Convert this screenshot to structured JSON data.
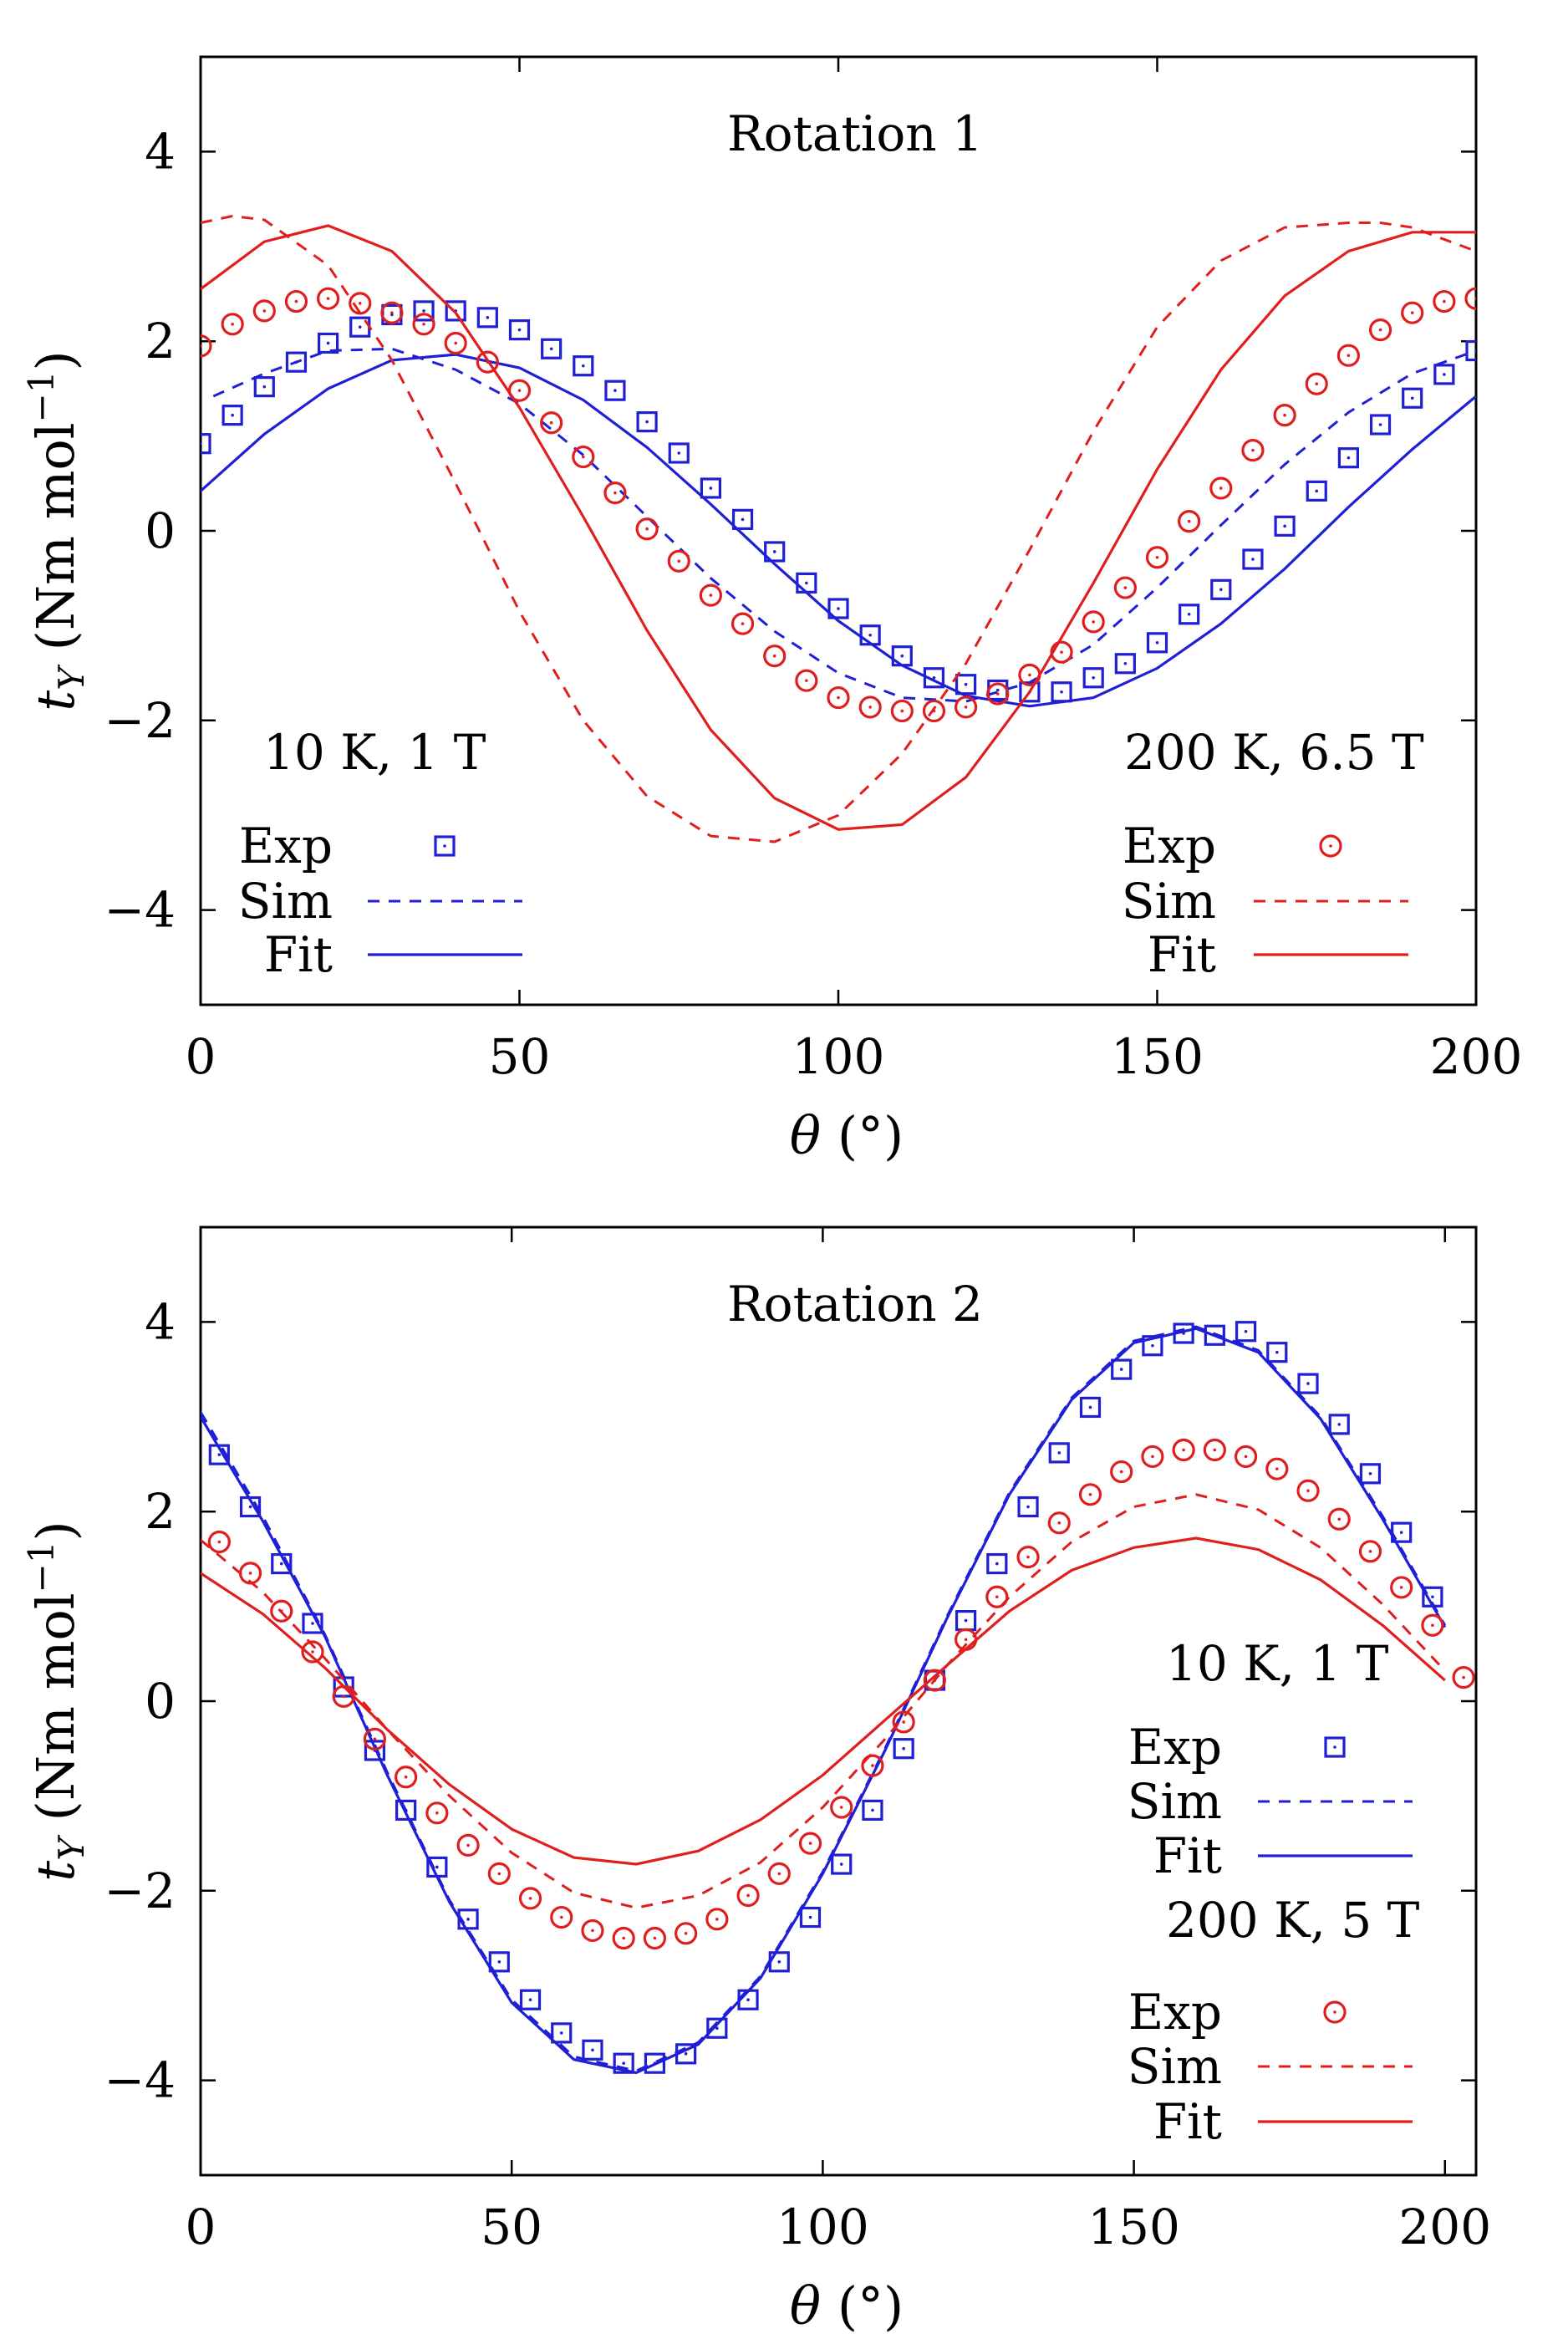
{
  "chart_data": [
    {
      "type": "line",
      "title": "Rotation 1",
      "xlabel_symbol": "θ",
      "xlabel_unit": " (°)",
      "ylabel_symbol": "t",
      "ylabel_sub": "Y",
      "ylabel_unit": " (Nm mol",
      "ylabel_exp": "−1",
      "ylabel_close": ")",
      "xlim": [
        0,
        200
      ],
      "ylim": [
        -5,
        5
      ],
      "xticks": [
        0,
        50,
        100,
        150,
        200
      ],
      "yticks": [
        -4,
        -2,
        0,
        2,
        4
      ],
      "xtick_labels": [
        "0",
        "50",
        "100",
        "150",
        "200"
      ],
      "ytick_labels": [
        "−4",
        "−2",
        "0",
        "2",
        "4"
      ],
      "groups": [
        {
          "heading": "10 K, 1 T",
          "color": "#1f1fd6",
          "marker": "square",
          "legend_position": "bottom-left",
          "exp_label": "Exp",
          "sim_label": "Sim",
          "fit_label": "Fit",
          "exp": {
            "x": [
              0,
              5,
              10,
              15,
              20,
              25,
              30,
              35,
              40,
              45,
              50,
              55,
              60,
              65,
              70,
              75,
              80,
              85,
              90,
              95,
              100,
              105,
              110,
              115,
              120,
              125,
              130,
              135,
              140,
              145,
              150,
              155,
              160,
              165,
              170,
              175,
              180,
              185,
              190,
              195,
              200
            ],
            "y": [
              0.92,
              1.22,
              1.52,
              1.78,
              1.98,
              2.15,
              2.28,
              2.32,
              2.32,
              2.25,
              2.12,
              1.92,
              1.74,
              1.48,
              1.15,
              0.82,
              0.45,
              0.12,
              -0.22,
              -0.55,
              -0.82,
              -1.1,
              -1.32,
              -1.55,
              -1.62,
              -1.68,
              -1.7,
              -1.7,
              -1.55,
              -1.4,
              -1.18,
              -0.88,
              -0.62,
              -0.3,
              0.05,
              0.42,
              0.77,
              1.12,
              1.4,
              1.65,
              1.9
            ]
          },
          "sim": {
            "x": [
              2,
              10,
              20,
              30,
              40,
              50,
              60,
              70,
              80,
              90,
              100,
              110,
              120,
              130,
              140,
              150,
              160,
              170,
              180,
              190,
              200
            ],
            "y": [
              1.42,
              1.66,
              1.9,
              1.92,
              1.7,
              1.34,
              0.8,
              0.15,
              -0.5,
              -1.06,
              -1.5,
              -1.76,
              -1.8,
              -1.6,
              -1.2,
              -0.6,
              0.06,
              0.7,
              1.25,
              1.66,
              1.9
            ]
          },
          "fit": {
            "x": [
              0,
              10,
              20,
              30,
              40,
              50,
              60,
              70,
              80,
              90,
              100,
              110,
              120,
              130,
              140,
              150,
              160,
              170,
              180,
              190,
              200
            ],
            "y": [
              0.42,
              1.02,
              1.5,
              1.8,
              1.86,
              1.72,
              1.38,
              0.88,
              0.28,
              -0.35,
              -0.95,
              -1.42,
              -1.74,
              -1.85,
              -1.76,
              -1.45,
              -0.98,
              -0.4,
              0.25,
              0.86,
              1.42
            ]
          }
        },
        {
          "heading": "200 K, 6.5 T",
          "color": "#e01e1e",
          "marker": "circle",
          "legend_position": "bottom-right",
          "exp_label": "Exp",
          "sim_label": "Sim",
          "fit_label": "Fit",
          "exp": {
            "x": [
              0,
              5,
              10,
              15,
              20,
              25,
              30,
              35,
              40,
              45,
              50,
              55,
              60,
              65,
              70,
              75,
              80,
              85,
              90,
              95,
              100,
              105,
              110,
              115,
              120,
              125,
              130,
              135,
              140,
              145,
              150,
              155,
              160,
              165,
              170,
              175,
              180,
              185,
              190,
              195,
              200
            ],
            "y": [
              1.95,
              2.18,
              2.32,
              2.42,
              2.45,
              2.4,
              2.3,
              2.18,
              1.98,
              1.78,
              1.48,
              1.14,
              0.78,
              0.4,
              0.02,
              -0.32,
              -0.68,
              -0.98,
              -1.32,
              -1.58,
              -1.76,
              -1.86,
              -1.9,
              -1.9,
              -1.86,
              -1.72,
              -1.52,
              -1.28,
              -0.96,
              -0.6,
              -0.28,
              0.1,
              0.45,
              0.85,
              1.22,
              1.55,
              1.85,
              2.12,
              2.3,
              2.42,
              2.45
            ]
          },
          "sim": {
            "x": [
              0,
              5,
              10,
              20,
              30,
              40,
              50,
              60,
              70,
              80,
              90,
              100,
              110,
              120,
              130,
              140,
              150,
              160,
              170,
              180,
              185,
              190,
              200
            ],
            "y": [
              3.25,
              3.32,
              3.28,
              2.8,
              1.8,
              0.5,
              -0.85,
              -2.0,
              -2.8,
              -3.22,
              -3.28,
              -3.0,
              -2.35,
              -1.4,
              -0.2,
              1.05,
              2.15,
              2.85,
              3.2,
              3.25,
              3.25,
              3.2,
              2.95
            ]
          },
          "fit": {
            "x": [
              0,
              10,
              20,
              30,
              40,
              50,
              60,
              70,
              80,
              90,
              100,
              110,
              120,
              130,
              140,
              150,
              160,
              170,
              180,
              190,
              200
            ],
            "y": [
              2.55,
              3.05,
              3.22,
              2.95,
              2.3,
              1.3,
              0.15,
              -1.05,
              -2.1,
              -2.82,
              -3.15,
              -3.1,
              -2.6,
              -1.7,
              -0.55,
              0.65,
              1.7,
              2.48,
              2.95,
              3.15,
              3.15
            ]
          }
        }
      ]
    },
    {
      "type": "line",
      "title": "Rotation 2",
      "xlabel_symbol": "θ",
      "xlabel_unit": " (°)",
      "ylabel_symbol": "t",
      "ylabel_sub": "Y",
      "ylabel_unit": " (Nm mol",
      "ylabel_exp": "−1",
      "ylabel_close": ")",
      "xlim": [
        0,
        205
      ],
      "ylim": [
        -5,
        5
      ],
      "xticks": [
        0,
        50,
        100,
        150,
        200
      ],
      "yticks": [
        -4,
        -2,
        0,
        2,
        4
      ],
      "xtick_labels": [
        "0",
        "50",
        "100",
        "150",
        "200"
      ],
      "ytick_labels": [
        "−4",
        "−2",
        "0",
        "2",
        "4"
      ],
      "groups": [
        {
          "heading": "10 K, 1 T",
          "color": "#1f1fd6",
          "marker": "square",
          "legend_position": "right-middle",
          "exp_label": "Exp",
          "sim_label": "Sim",
          "fit_label": "Fit",
          "exp": {
            "x": [
              3,
              8,
              13,
              18,
              23,
              28,
              33,
              38,
              43,
              48,
              53,
              58,
              63,
              68,
              73,
              78,
              83,
              88,
              93,
              98,
              103,
              108,
              113,
              118,
              123,
              128,
              133,
              138,
              143,
              148,
              153,
              158,
              163,
              168,
              173,
              178,
              183,
              188,
              193,
              198
            ],
            "y": [
              2.6,
              2.05,
              1.45,
              0.82,
              0.15,
              -0.52,
              -1.15,
              -1.75,
              -2.3,
              -2.75,
              -3.15,
              -3.5,
              -3.68,
              -3.82,
              -3.82,
              -3.72,
              -3.45,
              -3.15,
              -2.75,
              -2.28,
              -1.72,
              -1.15,
              -0.5,
              0.22,
              0.85,
              1.45,
              2.05,
              2.62,
              3.1,
              3.5,
              3.75,
              3.88,
              3.86,
              3.9,
              3.68,
              3.35,
              2.92,
              2.4,
              1.78,
              1.1
            ]
          },
          "sim": {
            "x": [
              0,
              10,
              20,
              30,
              40,
              50,
              60,
              70,
              80,
              90,
              100,
              110,
              120,
              130,
              140,
              150,
              160,
              170,
              180,
              190,
              200
            ],
            "y": [
              3.05,
              1.95,
              0.7,
              -0.75,
              -2.1,
              -3.15,
              -3.75,
              -3.9,
              -3.6,
              -2.9,
              -1.8,
              -0.5,
              0.9,
              2.2,
              3.2,
              3.8,
              3.95,
              3.7,
              3.0,
              1.95,
              0.8
            ]
          },
          "fit": {
            "x": [
              0,
              10,
              20,
              30,
              40,
              50,
              60,
              70,
              80,
              90,
              100,
              110,
              120,
              130,
              140,
              150,
              160,
              170,
              180,
              190,
              200
            ],
            "y": [
              3.0,
              1.9,
              0.68,
              -0.78,
              -2.12,
              -3.18,
              -3.78,
              -3.92,
              -3.62,
              -2.92,
              -1.82,
              -0.52,
              0.88,
              2.18,
              3.18,
              3.78,
              3.93,
              3.68,
              2.98,
              1.92,
              0.78
            ]
          }
        },
        {
          "heading": "200 K, 5 T",
          "color": "#e01e1e",
          "marker": "circle",
          "legend_position": "right-bottom",
          "exp_label": "Exp",
          "sim_label": "Sim",
          "fit_label": "Fit",
          "exp": {
            "x": [
              3,
              8,
              13,
              18,
              23,
              28,
              33,
              38,
              43,
              48,
              53,
              58,
              63,
              68,
              73,
              78,
              83,
              88,
              93,
              98,
              103,
              108,
              113,
              118,
              123,
              128,
              133,
              138,
              143,
              148,
              153,
              158,
              163,
              168,
              173,
              178,
              183,
              188,
              193,
              198,
              203
            ],
            "y": [
              1.68,
              1.35,
              0.95,
              0.52,
              0.05,
              -0.4,
              -0.8,
              -1.18,
              -1.52,
              -1.82,
              -2.08,
              -2.28,
              -2.42,
              -2.5,
              -2.5,
              -2.45,
              -2.3,
              -2.05,
              -1.82,
              -1.5,
              -1.12,
              -0.68,
              -0.22,
              0.22,
              0.65,
              1.1,
              1.52,
              1.88,
              2.18,
              2.42,
              2.58,
              2.65,
              2.65,
              2.58,
              2.45,
              2.22,
              1.92,
              1.58,
              1.2,
              0.8,
              0.25
            ]
          },
          "sim": {
            "x": [
              0,
              10,
              20,
              30,
              40,
              50,
              60,
              70,
              80,
              90,
              100,
              110,
              120,
              130,
              140,
              150,
              160,
              170,
              180,
              190,
              200
            ],
            "y": [
              1.7,
              1.15,
              0.45,
              -0.3,
              -1.0,
              -1.6,
              -2.02,
              -2.18,
              -2.05,
              -1.7,
              -1.12,
              -0.4,
              0.38,
              1.1,
              1.68,
              2.05,
              2.18,
              2.02,
              1.62,
              1.02,
              0.32
            ]
          },
          "fit": {
            "x": [
              0,
              10,
              20,
              30,
              40,
              50,
              60,
              70,
              80,
              90,
              100,
              110,
              120,
              130,
              140,
              150,
              160,
              170,
              180,
              190,
              200
            ],
            "y": [
              1.35,
              0.92,
              0.35,
              -0.3,
              -0.88,
              -1.35,
              -1.65,
              -1.72,
              -1.58,
              -1.25,
              -0.78,
              -0.2,
              0.38,
              0.95,
              1.38,
              1.62,
              1.72,
              1.6,
              1.28,
              0.8,
              0.22
            ]
          }
        }
      ]
    }
  ]
}
